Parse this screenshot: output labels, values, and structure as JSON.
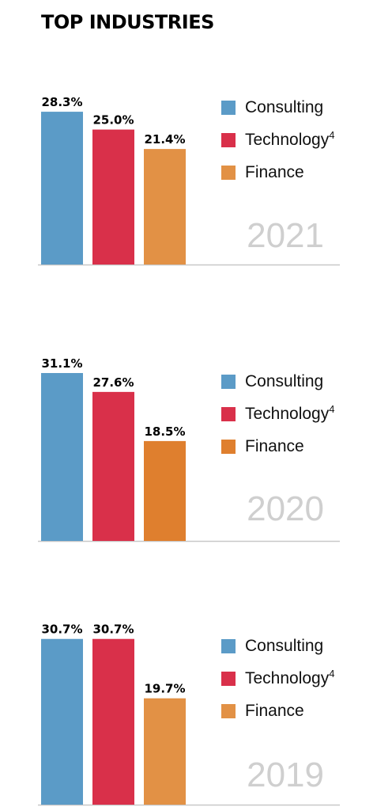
{
  "title": "TOP INDUSTRIES",
  "colors": {
    "consulting": "#5b9bc7",
    "technology": "#d9304a",
    "finance_2021": "#e29145",
    "finance_2020": "#df7f2e",
    "finance_2019": "#e29145",
    "baseline": "#c8c8c8"
  },
  "chart_data": [
    {
      "type": "bar",
      "year": "2021",
      "categories": [
        "Consulting",
        "Technology",
        "Finance"
      ],
      "values": [
        28.3,
        25.0,
        21.4
      ],
      "value_labels": [
        "28.3%",
        "25.0%",
        "21.4%"
      ],
      "legend": [
        {
          "label": "Consulting",
          "sup": ""
        },
        {
          "label": "Technology",
          "sup": "4"
        },
        {
          "label": "Finance",
          "sup": ""
        }
      ],
      "legend_placement": "right",
      "grid": false,
      "ylim": [
        0,
        31.1
      ]
    },
    {
      "type": "bar",
      "year": "2020",
      "categories": [
        "Consulting",
        "Technology",
        "Finance"
      ],
      "values": [
        31.1,
        27.6,
        18.5
      ],
      "value_labels": [
        "31.1%",
        "27.6%",
        "18.5%"
      ],
      "legend": [
        {
          "label": "Consulting",
          "sup": ""
        },
        {
          "label": "Technology",
          "sup": "4"
        },
        {
          "label": "Finance",
          "sup": ""
        }
      ],
      "legend_placement": "right",
      "grid": false,
      "ylim": [
        0,
        31.1
      ]
    },
    {
      "type": "bar",
      "year": "2019",
      "categories": [
        "Consulting",
        "Technology",
        "Finance"
      ],
      "values": [
        30.7,
        30.7,
        19.7
      ],
      "value_labels": [
        "30.7%",
        "30.7%",
        "19.7%"
      ],
      "legend": [
        {
          "label": "Consulting",
          "sup": ""
        },
        {
          "label": "Technology",
          "sup": "4"
        },
        {
          "label": "Finance",
          "sup": ""
        }
      ],
      "legend_placement": "right",
      "grid": false,
      "ylim": [
        0,
        31.1
      ]
    }
  ]
}
